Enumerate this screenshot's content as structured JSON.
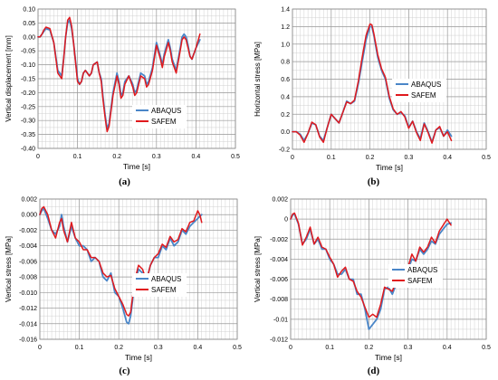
{
  "colors": {
    "abaqus": "#4a86c8",
    "safem": "#e0191d",
    "grid": "#d0d0d0",
    "frame": "#8c8c8c"
  },
  "chart_data": [
    {
      "type": "line",
      "caption": "(a)",
      "xlabel": "Time [s]",
      "ylabel": "Vertical displacement [mm]",
      "xlim": [
        0,
        0.5
      ],
      "ylim": [
        -0.4,
        0.1
      ],
      "xticks": [
        0,
        0.1,
        0.2,
        0.3,
        0.4,
        0.5
      ],
      "xtick_labels": [
        "0",
        "0.1",
        "0.2",
        "0.3",
        "0.4",
        "0.5"
      ],
      "yticks": [
        0.1,
        0.05,
        0.0,
        -0.05,
        -0.1,
        -0.15,
        -0.2,
        -0.25,
        -0.3,
        -0.35,
        -0.4
      ],
      "ytick_labels": [
        "0.10",
        "0.05",
        "0.00",
        "-0.05",
        "-0.10",
        "-0.15",
        "-0.20",
        "-0.25",
        "-0.30",
        "-0.35",
        "-0.40"
      ],
      "grid": true,
      "legend": "bottom-right",
      "series": [
        {
          "name": "ABAQUS",
          "color": "#4a86c8",
          "x": [
            0,
            0.005,
            0.01,
            0.015,
            0.02,
            0.03,
            0.04,
            0.05,
            0.06,
            0.065,
            0.07,
            0.075,
            0.08,
            0.085,
            0.09,
            0.1,
            0.105,
            0.11,
            0.115,
            0.12,
            0.125,
            0.13,
            0.135,
            0.14,
            0.15,
            0.155,
            0.16,
            0.165,
            0.17,
            0.175,
            0.18,
            0.19,
            0.2,
            0.205,
            0.21,
            0.215,
            0.22,
            0.23,
            0.24,
            0.245,
            0.25,
            0.26,
            0.27,
            0.275,
            0.28,
            0.29,
            0.3,
            0.31,
            0.315,
            0.32,
            0.33,
            0.335,
            0.34,
            0.35,
            0.36,
            0.365,
            0.37,
            0.375,
            0.38,
            0.385,
            0.39,
            0.4,
            0.41
          ],
          "y": [
            0.0,
            0.0,
            0.01,
            0.02,
            0.03,
            0.025,
            -0.02,
            -0.12,
            -0.14,
            -0.08,
            0.0,
            0.05,
            0.06,
            0.03,
            -0.02,
            -0.15,
            -0.17,
            -0.16,
            -0.13,
            -0.12,
            -0.13,
            -0.14,
            -0.13,
            -0.1,
            -0.09,
            -0.13,
            -0.15,
            -0.22,
            -0.28,
            -0.33,
            -0.31,
            -0.2,
            -0.13,
            -0.16,
            -0.21,
            -0.2,
            -0.16,
            -0.14,
            -0.17,
            -0.2,
            -0.19,
            -0.13,
            -0.14,
            -0.17,
            -0.16,
            -0.11,
            -0.02,
            -0.07,
            -0.1,
            -0.06,
            -0.01,
            -0.04,
            -0.08,
            -0.12,
            -0.04,
            0.0,
            0.01,
            0.0,
            -0.03,
            -0.07,
            -0.08,
            -0.04,
            -0.01
          ]
        },
        {
          "name": "SAFEM",
          "color": "#e0191d",
          "x": [
            0,
            0.005,
            0.01,
            0.015,
            0.02,
            0.03,
            0.04,
            0.05,
            0.06,
            0.065,
            0.07,
            0.075,
            0.08,
            0.085,
            0.09,
            0.1,
            0.105,
            0.11,
            0.115,
            0.12,
            0.125,
            0.13,
            0.135,
            0.14,
            0.15,
            0.155,
            0.16,
            0.165,
            0.17,
            0.175,
            0.18,
            0.19,
            0.2,
            0.205,
            0.21,
            0.215,
            0.22,
            0.23,
            0.24,
            0.245,
            0.25,
            0.26,
            0.27,
            0.275,
            0.28,
            0.29,
            0.3,
            0.31,
            0.315,
            0.32,
            0.33,
            0.335,
            0.34,
            0.35,
            0.36,
            0.365,
            0.37,
            0.375,
            0.38,
            0.385,
            0.39,
            0.4,
            0.41
          ],
          "y": [
            0.0,
            0.0,
            0.01,
            0.025,
            0.035,
            0.03,
            -0.02,
            -0.13,
            -0.15,
            -0.08,
            0.0,
            0.06,
            0.07,
            0.04,
            -0.02,
            -0.16,
            -0.17,
            -0.16,
            -0.13,
            -0.12,
            -0.13,
            -0.14,
            -0.13,
            -0.1,
            -0.09,
            -0.13,
            -0.16,
            -0.23,
            -0.29,
            -0.34,
            -0.32,
            -0.21,
            -0.14,
            -0.17,
            -0.22,
            -0.21,
            -0.17,
            -0.14,
            -0.18,
            -0.21,
            -0.2,
            -0.14,
            -0.15,
            -0.18,
            -0.17,
            -0.12,
            -0.03,
            -0.08,
            -0.11,
            -0.07,
            -0.02,
            -0.05,
            -0.09,
            -0.13,
            -0.05,
            -0.01,
            0.0,
            -0.01,
            -0.04,
            -0.07,
            -0.08,
            -0.04,
            0.01
          ]
        }
      ]
    },
    {
      "type": "line",
      "caption": "(b)",
      "xlabel": "Time [s]",
      "ylabel": "Horizontal stress [MPa]",
      "xlim": [
        0,
        0.5
      ],
      "ylim": [
        -0.2,
        1.4
      ],
      "xticks": [
        0,
        0.1,
        0.2,
        0.3,
        0.4,
        0.5
      ],
      "xtick_labels": [
        "0",
        "0.1",
        "0.2",
        "0.3",
        "0.4",
        "0.5"
      ],
      "yticks": [
        1.4,
        1.2,
        1.0,
        0.8,
        0.6,
        0.4,
        0.2,
        0.0,
        -0.2
      ],
      "ytick_labels": [
        "1.4",
        "1.2",
        "1.0",
        "0.8",
        "0.6",
        "0.4",
        "0.2",
        "0.0",
        "-0.2"
      ],
      "grid": true,
      "legend": "right",
      "series": [
        {
          "name": "ABAQUS",
          "color": "#4a86c8",
          "x": [
            0,
            0.01,
            0.02,
            0.03,
            0.04,
            0.05,
            0.06,
            0.07,
            0.08,
            0.09,
            0.1,
            0.11,
            0.12,
            0.13,
            0.14,
            0.15,
            0.16,
            0.17,
            0.18,
            0.19,
            0.2,
            0.205,
            0.21,
            0.22,
            0.23,
            0.24,
            0.25,
            0.26,
            0.27,
            0.28,
            0.29,
            0.3,
            0.31,
            0.32,
            0.33,
            0.34,
            0.35,
            0.36,
            0.37,
            0.38,
            0.39,
            0.4,
            0.41
          ],
          "y": [
            0.0,
            0.0,
            -0.03,
            -0.1,
            -0.02,
            0.1,
            0.08,
            -0.05,
            -0.1,
            0.05,
            0.2,
            0.15,
            0.1,
            0.22,
            0.35,
            0.32,
            0.35,
            0.55,
            0.8,
            1.05,
            1.2,
            1.2,
            1.1,
            0.85,
            0.7,
            0.6,
            0.38,
            0.25,
            0.2,
            0.22,
            0.18,
            0.05,
            0.12,
            0.0,
            -0.08,
            0.1,
            0.0,
            -0.12,
            0.02,
            0.05,
            -0.05,
            0.02,
            -0.05
          ]
        },
        {
          "name": "SAFEM",
          "color": "#e0191d",
          "x": [
            0,
            0.01,
            0.02,
            0.03,
            0.04,
            0.05,
            0.06,
            0.07,
            0.08,
            0.09,
            0.1,
            0.11,
            0.12,
            0.13,
            0.14,
            0.15,
            0.16,
            0.17,
            0.18,
            0.19,
            0.2,
            0.205,
            0.21,
            0.22,
            0.23,
            0.24,
            0.25,
            0.26,
            0.27,
            0.28,
            0.29,
            0.3,
            0.31,
            0.32,
            0.33,
            0.34,
            0.35,
            0.36,
            0.37,
            0.38,
            0.39,
            0.4,
            0.41
          ],
          "y": [
            0.0,
            0.0,
            -0.04,
            -0.12,
            -0.02,
            0.11,
            0.08,
            -0.06,
            -0.12,
            0.05,
            0.2,
            0.15,
            0.1,
            0.22,
            0.34,
            0.32,
            0.36,
            0.58,
            0.85,
            1.1,
            1.23,
            1.22,
            1.12,
            0.88,
            0.72,
            0.62,
            0.4,
            0.26,
            0.2,
            0.23,
            0.17,
            0.04,
            0.12,
            -0.01,
            -0.1,
            0.09,
            -0.01,
            -0.13,
            0.02,
            0.06,
            -0.05,
            0.0,
            -0.1
          ]
        }
      ]
    },
    {
      "type": "line",
      "caption": "(c)",
      "xlabel": "Time [s]",
      "ylabel": "Vertical stress [MPa]",
      "xlim": [
        0,
        0.5
      ],
      "ylim": [
        -0.016,
        0.002
      ],
      "xticks": [
        0,
        0.1,
        0.2,
        0.3,
        0.4,
        0.5
      ],
      "xtick_labels": [
        "0",
        "0.1",
        "0.2",
        "0.3",
        "0.4",
        "0.5"
      ],
      "yticks": [
        0.002,
        0.0,
        -0.002,
        -0.004,
        -0.006,
        -0.008,
        -0.01,
        -0.012,
        -0.014,
        -0.016
      ],
      "ytick_labels": [
        "0.002",
        "0.000",
        "-0.002",
        "-0.004",
        "-0.006",
        "-0.008",
        "-0.010",
        "-0.012",
        "-0.014",
        "-0.016"
      ],
      "grid": true,
      "legend": "right",
      "series": [
        {
          "name": "ABAQUS",
          "color": "#4a86c8",
          "x": [
            0,
            0.005,
            0.01,
            0.02,
            0.03,
            0.04,
            0.05,
            0.055,
            0.06,
            0.07,
            0.08,
            0.09,
            0.1,
            0.11,
            0.12,
            0.13,
            0.14,
            0.15,
            0.16,
            0.17,
            0.18,
            0.19,
            0.2,
            0.21,
            0.22,
            0.225,
            0.23,
            0.24,
            0.25,
            0.26,
            0.27,
            0.28,
            0.29,
            0.3,
            0.31,
            0.32,
            0.33,
            0.34,
            0.35,
            0.36,
            0.37,
            0.38,
            0.39,
            0.4,
            0.405,
            0.41
          ],
          "y": [
            0.0,
            0.0005,
            0.0008,
            -0.0005,
            -0.002,
            -0.0025,
            -0.0015,
            0.0,
            -0.0015,
            -0.0035,
            -0.0015,
            -0.003,
            -0.004,
            -0.004,
            -0.0045,
            -0.006,
            -0.0055,
            -0.006,
            -0.008,
            -0.0085,
            -0.0075,
            -0.01,
            -0.0105,
            -0.012,
            -0.0138,
            -0.014,
            -0.013,
            -0.009,
            -0.007,
            -0.0075,
            -0.0085,
            -0.0065,
            -0.0055,
            -0.0055,
            -0.004,
            -0.0045,
            -0.003,
            -0.004,
            -0.0035,
            -0.002,
            -0.0025,
            -0.0015,
            -0.001,
            -0.0005,
            -0.0002,
            0.0
          ]
        },
        {
          "name": "SAFEM",
          "color": "#e0191d",
          "x": [
            0,
            0.005,
            0.01,
            0.02,
            0.03,
            0.04,
            0.05,
            0.055,
            0.06,
            0.07,
            0.08,
            0.09,
            0.1,
            0.11,
            0.12,
            0.13,
            0.14,
            0.15,
            0.16,
            0.17,
            0.18,
            0.19,
            0.2,
            0.21,
            0.22,
            0.225,
            0.23,
            0.24,
            0.25,
            0.26,
            0.27,
            0.28,
            0.29,
            0.3,
            0.31,
            0.32,
            0.33,
            0.34,
            0.35,
            0.36,
            0.37,
            0.38,
            0.39,
            0.4,
            0.405,
            0.41
          ],
          "y": [
            0.0,
            0.0008,
            0.001,
            0.0,
            -0.002,
            -0.003,
            -0.001,
            -0.0005,
            -0.002,
            -0.0035,
            -0.001,
            -0.003,
            -0.0035,
            -0.0045,
            -0.0045,
            -0.0055,
            -0.0055,
            -0.006,
            -0.0075,
            -0.008,
            -0.0078,
            -0.0095,
            -0.0105,
            -0.0115,
            -0.0128,
            -0.013,
            -0.0125,
            -0.0085,
            -0.0065,
            -0.007,
            -0.0085,
            -0.0065,
            -0.0055,
            -0.005,
            -0.0038,
            -0.0042,
            -0.0028,
            -0.0035,
            -0.0032,
            -0.0018,
            -0.0022,
            -0.001,
            -0.0008,
            0.0005,
            0.0,
            -0.001
          ]
        }
      ]
    },
    {
      "type": "line",
      "caption": "(d)",
      "xlabel": "Time [s]",
      "ylabel": "Vertical stress [MPa]",
      "xlim": [
        0,
        0.5
      ],
      "ylim": [
        -0.012,
        0.002
      ],
      "xticks": [
        0,
        0.1,
        0.2,
        0.3,
        0.4,
        0.5
      ],
      "xtick_labels": [
        "0",
        "0.1",
        "0.2",
        "0.3",
        "0.4",
        "0.5"
      ],
      "yticks": [
        0.002,
        0.0,
        -0.002,
        -0.004,
        -0.006,
        -0.008,
        -0.01,
        -0.012
      ],
      "ytick_labels": [
        "0.002",
        "0",
        "-0.002",
        "-0.004",
        "-0.006",
        "-0.008",
        "-0.01",
        "-0.012"
      ],
      "grid": true,
      "legend": "right",
      "series": [
        {
          "name": "ABAQUS",
          "color": "#4a86c8",
          "x": [
            0,
            0.005,
            0.01,
            0.02,
            0.03,
            0.04,
            0.05,
            0.06,
            0.07,
            0.08,
            0.09,
            0.1,
            0.11,
            0.12,
            0.13,
            0.14,
            0.15,
            0.16,
            0.17,
            0.18,
            0.19,
            0.2,
            0.21,
            0.22,
            0.23,
            0.24,
            0.25,
            0.26,
            0.27,
            0.28,
            0.29,
            0.3,
            0.31,
            0.32,
            0.33,
            0.34,
            0.35,
            0.36,
            0.37,
            0.38,
            0.39,
            0.4,
            0.41
          ],
          "y": [
            0.0,
            0.0004,
            0.0005,
            -0.0005,
            -0.0025,
            -0.002,
            -0.001,
            -0.0025,
            -0.002,
            -0.003,
            -0.003,
            -0.004,
            -0.0045,
            -0.0055,
            -0.0055,
            -0.005,
            -0.006,
            -0.006,
            -0.0075,
            -0.0075,
            -0.009,
            -0.011,
            -0.0105,
            -0.01,
            -0.009,
            -0.007,
            -0.0068,
            -0.0075,
            -0.0065,
            -0.006,
            -0.0055,
            -0.005,
            -0.004,
            -0.0042,
            -0.003,
            -0.0035,
            -0.003,
            -0.0022,
            -0.0025,
            -0.0015,
            -0.001,
            -0.0005,
            -0.0004
          ]
        },
        {
          "name": "SAFEM",
          "color": "#e0191d",
          "x": [
            0,
            0.005,
            0.01,
            0.02,
            0.03,
            0.04,
            0.05,
            0.06,
            0.07,
            0.08,
            0.09,
            0.1,
            0.11,
            0.12,
            0.13,
            0.14,
            0.15,
            0.16,
            0.17,
            0.18,
            0.19,
            0.2,
            0.21,
            0.22,
            0.23,
            0.24,
            0.25,
            0.26,
            0.27,
            0.28,
            0.29,
            0.3,
            0.31,
            0.32,
            0.33,
            0.34,
            0.35,
            0.36,
            0.37,
            0.38,
            0.39,
            0.4,
            0.41
          ],
          "y": [
            0.0,
            0.0005,
            0.0006,
            -0.0004,
            -0.0026,
            -0.0018,
            -0.0008,
            -0.0025,
            -0.0018,
            -0.0028,
            -0.003,
            -0.0038,
            -0.0045,
            -0.0058,
            -0.0052,
            -0.0048,
            -0.006,
            -0.0062,
            -0.0072,
            -0.0078,
            -0.0088,
            -0.0098,
            -0.0095,
            -0.0098,
            -0.0085,
            -0.0068,
            -0.007,
            -0.0072,
            -0.0062,
            -0.0058,
            -0.005,
            -0.0048,
            -0.0035,
            -0.0042,
            -0.0028,
            -0.0033,
            -0.0028,
            -0.0018,
            -0.0024,
            -0.0012,
            -0.0006,
            0.0,
            -0.0006
          ]
        }
      ]
    }
  ]
}
